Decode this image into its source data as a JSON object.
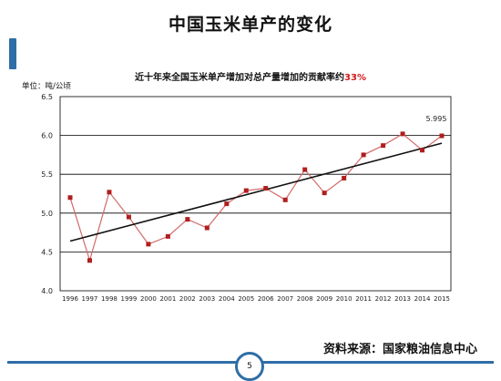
{
  "slide": {
    "title": "中国玉米单产的变化",
    "source": "资料来源：国家粮油信息中心",
    "page_number": "5"
  },
  "colors": {
    "accent": "#2f6ea6",
    "series_line": "#d26a6a",
    "marker": "#b01e1e",
    "trend": "#111111",
    "highlight": "#d01818"
  },
  "chart_data": {
    "type": "line",
    "title": "近十年来全国玉米单产增加对总产量增加的贡献率约",
    "title_highlight": "33%",
    "unit_label": "单位：吨/公顷",
    "x": [
      "1996",
      "1997",
      "1998",
      "1999",
      "2000",
      "2001",
      "2002",
      "2003",
      "2004",
      "2005",
      "2006",
      "2007",
      "2008",
      "2009",
      "2010",
      "2011",
      "2012",
      "2013",
      "2014",
      "2015"
    ],
    "series": [
      {
        "values": [
          5.2,
          4.39,
          5.27,
          4.95,
          4.6,
          4.7,
          4.92,
          4.81,
          5.12,
          5.29,
          5.32,
          5.17,
          5.56,
          5.26,
          5.45,
          5.75,
          5.87,
          6.02,
          5.81,
          5.995
        ]
      }
    ],
    "trendline": {
      "start": 4.64,
      "end": 5.9
    },
    "annotation": {
      "x": "2015",
      "text": "5.995"
    },
    "ylim": [
      4.0,
      6.5
    ],
    "yticks": [
      "4.0",
      "4.5",
      "5.0",
      "5.5",
      "6.0",
      "6.5"
    ],
    "grid": true,
    "legend": "none"
  }
}
